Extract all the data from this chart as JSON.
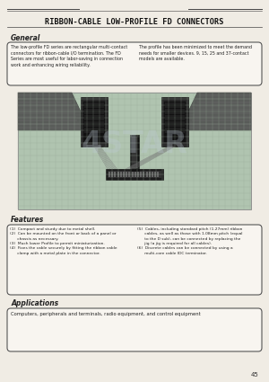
{
  "title": "RIBBON-CABLE LOW-PROFILE FD CONNECTORS",
  "page_bg": "#f0ece4",
  "box_bg": "#f8f5f0",
  "box_edge": "#555555",
  "section_general": "General",
  "general_text_left": "The low-profile FD series are rectangular multi-contact\nconnectors for ribbon-cable I/O termination. The FD\nSeries are most useful for labor-saving in connection\nwork and enhancing wiring reliability.",
  "general_text_right": "The profile has been minimized to meet the demand\nneeds for smaller devices. 9, 15, 25 and 37-contact\nmodels are available.",
  "section_features": "Features",
  "features_left": "(1)  Compact and sturdy due to metal shell.\n(2)  Can be mounted on the front or back of a panel or\n      chassis as necessary.\n(3)  Much lower Profile to permit miniaturization.\n(4)  Fixes the cable securely by fitting the ribbon cable\n      clamp with a metal plate in the connector.",
  "features_right": "(5)  Cables, including standard pitch (1.27mm) ribbon\n      cables, as well as those with 1.08mm pitch (equal\n      to the D sub), can be connected by replacing the\n      jig (a jig is required for all cables).\n(6)  Discrete cables can be connected by using a\n      multi-core cable IDC terminator.",
  "section_applications": "Applications",
  "applications_text": "Computers, peripherals and terminals, radio equipment, and control equipment",
  "page_number": "45",
  "watermark": "4STAR",
  "title_line_color": "#444444",
  "text_color": "#222222",
  "img_grid_color": "#9aaa9a",
  "img_bg": "#b0c4b0"
}
